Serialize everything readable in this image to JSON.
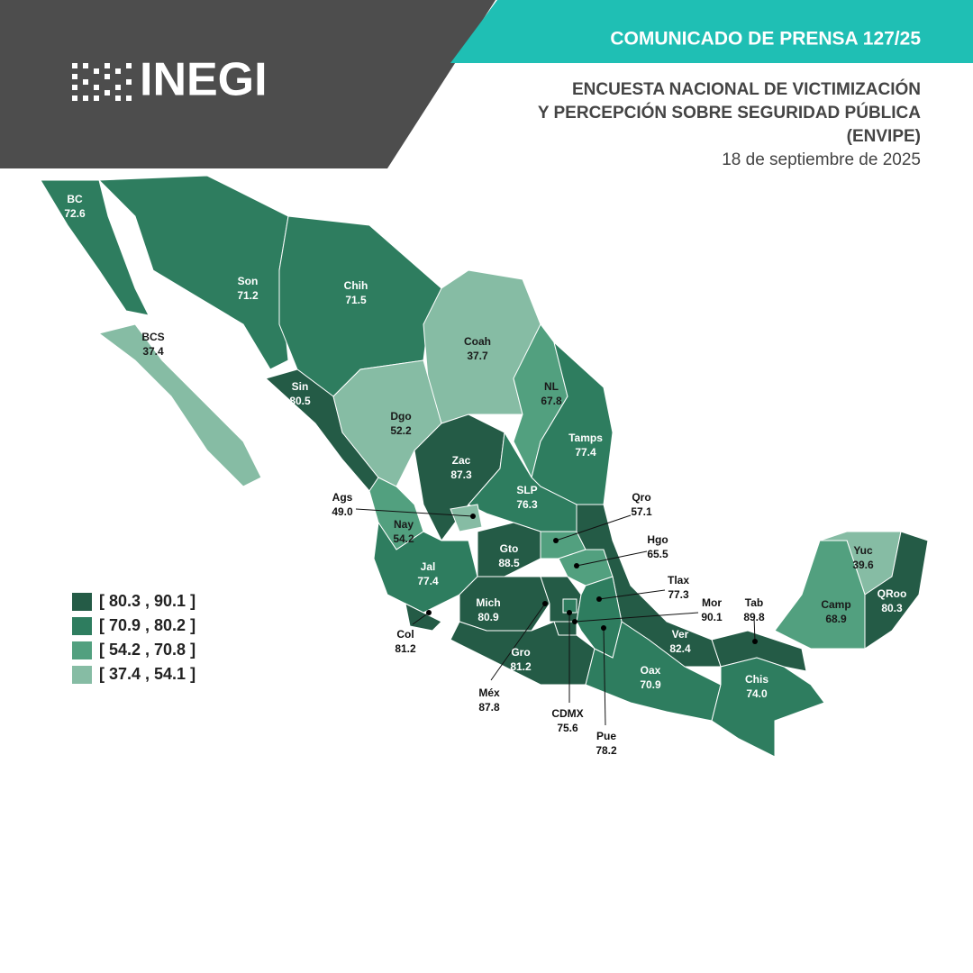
{
  "header": {
    "logo": "INEGI",
    "release": "COMUNICADO DE PRENSA 127/25",
    "title_lines": [
      "ENCUESTA NACIONAL DE VICTIMIZACIÓN",
      "Y PERCEPCIÓN SOBRE SEGURIDAD PÚBLICA",
      "(ENVIPE)"
    ],
    "date": "18 de septiembre de 2025"
  },
  "legend": [
    {
      "label": "[ 80.3 , 90.1 ]",
      "color": "#245b46"
    },
    {
      "label": "[ 70.9 , 80.2 ]",
      "color": "#2e7d5f"
    },
    {
      "label": "[ 54.2 , 70.8 ]",
      "color": "#52a07f"
    },
    {
      "label": "[ 37.4 , 54.1 ]",
      "color": "#86bca4"
    }
  ],
  "states": [
    {
      "name": "BC",
      "value": "72.6",
      "color": "#2e7d5f"
    },
    {
      "name": "Son",
      "value": "71.2",
      "color": "#2e7d5f"
    },
    {
      "name": "Chih",
      "value": "71.5",
      "color": "#2e7d5f"
    },
    {
      "name": "BCS",
      "value": "37.4",
      "color": "#86bca4"
    },
    {
      "name": "Coah",
      "value": "37.7",
      "color": "#86bca4"
    },
    {
      "name": "NL",
      "value": "67.8",
      "color": "#52a07f"
    },
    {
      "name": "Tamps",
      "value": "77.4",
      "color": "#2e7d5f"
    },
    {
      "name": "Sin",
      "value": "80.5",
      "color": "#245b46"
    },
    {
      "name": "Dgo",
      "value": "52.2",
      "color": "#86bca4"
    },
    {
      "name": "Zac",
      "value": "87.3",
      "color": "#245b46"
    },
    {
      "name": "SLP",
      "value": "76.3",
      "color": "#2e7d5f"
    },
    {
      "name": "Ags",
      "value": "49.0",
      "color": "#86bca4"
    },
    {
      "name": "Nay",
      "value": "54.2",
      "color": "#52a07f"
    },
    {
      "name": "Qro",
      "value": "57.1",
      "color": "#52a07f"
    },
    {
      "name": "Hgo",
      "value": "65.5",
      "color": "#52a07f"
    },
    {
      "name": "Gto",
      "value": "88.5",
      "color": "#245b46"
    },
    {
      "name": "Jal",
      "value": "77.4",
      "color": "#2e7d5f"
    },
    {
      "name": "Tlax",
      "value": "77.3",
      "color": "#2e7d5f"
    },
    {
      "name": "Mich",
      "value": "80.9",
      "color": "#245b46"
    },
    {
      "name": "Mor",
      "value": "90.1",
      "color": "#245b46"
    },
    {
      "name": "Tab",
      "value": "89.8",
      "color": "#245b46"
    },
    {
      "name": "Col",
      "value": "81.2",
      "color": "#245b46"
    },
    {
      "name": "Méx",
      "value": "87.8",
      "color": "#245b46"
    },
    {
      "name": "Gro",
      "value": "81.2",
      "color": "#245b46"
    },
    {
      "name": "Ver",
      "value": "82.4",
      "color": "#245b46"
    },
    {
      "name": "Oax",
      "value": "70.9",
      "color": "#2e7d5f"
    },
    {
      "name": "Chis",
      "value": "74.0",
      "color": "#2e7d5f"
    },
    {
      "name": "CDMX",
      "value": "75.6",
      "color": "#2e7d5f"
    },
    {
      "name": "Pue",
      "value": "78.2",
      "color": "#2e7d5f"
    },
    {
      "name": "Yuc",
      "value": "39.6",
      "color": "#86bca4"
    },
    {
      "name": "Camp",
      "value": "68.9",
      "color": "#52a07f"
    },
    {
      "name": "QRoo",
      "value": "80.3",
      "color": "#245b46"
    }
  ]
}
